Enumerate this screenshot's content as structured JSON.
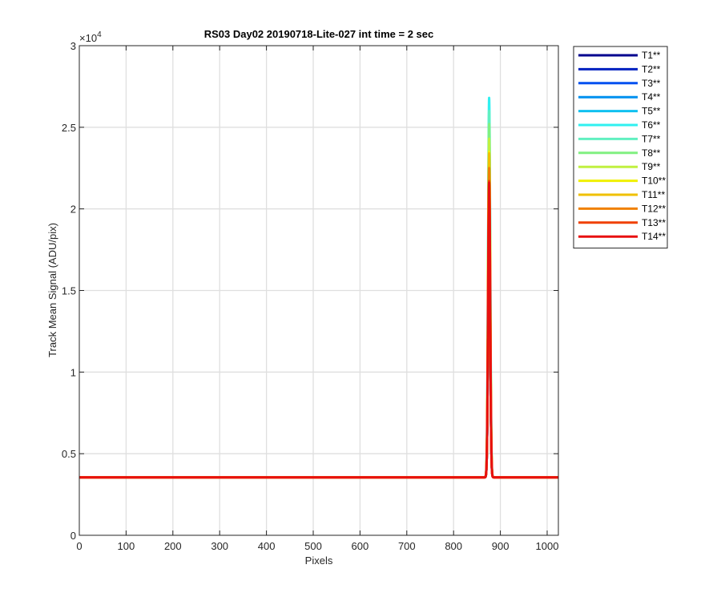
{
  "chart_data": {
    "type": "line",
    "title": "RS03 Day02 20190718-Lite-027 int time = 2 sec",
    "xlabel": "Pixels",
    "ylabel": "Track Mean Signal (ADU/pix)",
    "y_exponent_label": "×10",
    "y_exponent": "4",
    "xlim": [
      0,
      1024
    ],
    "ylim": [
      0,
      30000
    ],
    "xticks": [
      0,
      100,
      200,
      300,
      400,
      500,
      600,
      700,
      800,
      900,
      1000
    ],
    "yticks": [
      0,
      5000,
      10000,
      15000,
      20000,
      25000,
      30000
    ],
    "xtick_labels": [
      "0",
      "100",
      "200",
      "300",
      "400",
      "500",
      "600",
      "700",
      "800",
      "900",
      "1000"
    ],
    "ytick_labels": [
      "0",
      "0.5",
      "1",
      "1.5",
      "2",
      "2.5",
      "3"
    ],
    "grid": true,
    "legend_position": "outside-top-right",
    "baseline": 3550,
    "peak_x": 876,
    "series": [
      {
        "name": "T1**",
        "color": "#00008F",
        "peak": 21600
      },
      {
        "name": "T2**",
        "color": "#0020C0",
        "peak": 21600
      },
      {
        "name": "T3**",
        "color": "#0050F0",
        "peak": 21600
      },
      {
        "name": "T4**",
        "color": "#0090F0",
        "peak": 21600
      },
      {
        "name": "T5**",
        "color": "#10C0F0",
        "peak": 21600
      },
      {
        "name": "T6**",
        "color": "#30F0F0",
        "peak": 26800
      },
      {
        "name": "T7**",
        "color": "#60F0C0",
        "peak": 26000
      },
      {
        "name": "T8**",
        "color": "#80F080",
        "peak": 25200
      },
      {
        "name": "T9**",
        "color": "#C0F040",
        "peak": 24300
      },
      {
        "name": "T10**",
        "color": "#F0F000",
        "peak": 23500
      },
      {
        "name": "T11**",
        "color": "#F0C000",
        "peak": 23400
      },
      {
        "name": "T12**",
        "color": "#F08000",
        "peak": 22500
      },
      {
        "name": "T13**",
        "color": "#F04000",
        "peak": 21700
      },
      {
        "name": "T14**",
        "color": "#E81010",
        "peak": 21600
      }
    ]
  }
}
